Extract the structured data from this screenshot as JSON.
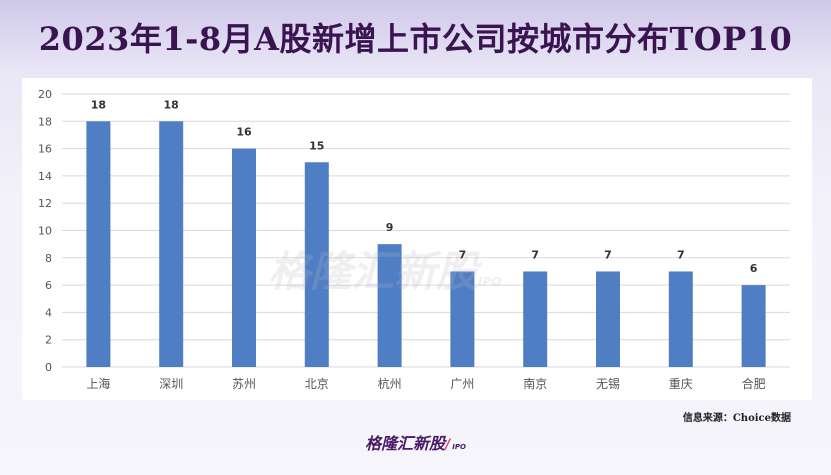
{
  "title": "2023年1-8月A股新增上市公司按城市分布TOP10",
  "source": "信息来源：Choice数据",
  "brand": "格隆汇新股",
  "brand_ipo": "IPO",
  "watermark": "格隆汇新股",
  "colors": {
    "bar": "#4f7ec4",
    "title": "#3a1450",
    "grid": "#d9d9d9",
    "axis_text": "#555555"
  },
  "chart_data": {
    "type": "bar",
    "title": "2023年1-8月A股新增上市公司按城市分布TOP10",
    "xlabel": "",
    "ylabel": "",
    "ylim": [
      0,
      20
    ],
    "yticks": [
      0,
      2,
      4,
      6,
      8,
      10,
      12,
      14,
      16,
      18,
      20
    ],
    "grid": true,
    "categories": [
      "上海",
      "深圳",
      "苏州",
      "北京",
      "杭州",
      "广州",
      "南京",
      "无锡",
      "重庆",
      "合肥"
    ],
    "values": [
      18,
      18,
      16,
      15,
      9,
      7,
      7,
      7,
      7,
      6
    ],
    "data_labels": [
      "18",
      "18",
      "16",
      "15",
      "9",
      "7",
      "7",
      "7",
      "7",
      "6"
    ]
  }
}
